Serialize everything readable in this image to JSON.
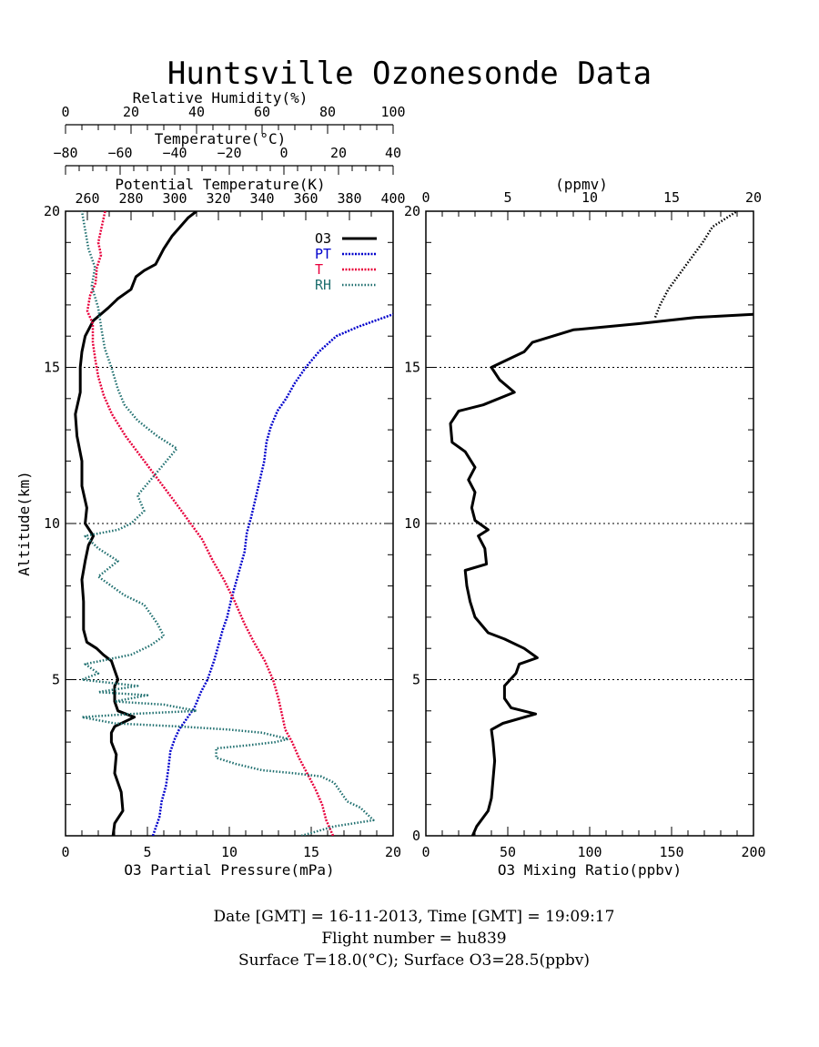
{
  "title": "Huntsville Ozonesonde Data",
  "footer": {
    "line1": "Date [GMT] = 16-11-2013,  Time [GMT] = 19:09:17",
    "line2": "Flight number = hu839",
    "line3": "Surface T=18.0(°C); Surface O3=28.5(ppbv)"
  },
  "colors": {
    "O3": "#000000",
    "PT": "#0000cc",
    "T": "#e8003c",
    "RH": "#1f6f6f"
  },
  "chart_data": [
    {
      "type": "line",
      "panel": "left",
      "ylabel": "Altitude(km)",
      "ylim": [
        0,
        20
      ],
      "yticks": [
        5,
        10,
        15,
        20
      ],
      "axes": [
        {
          "key": "O3",
          "label": "O3 Partial Pressure(mPa)",
          "position": "bottom",
          "range": [
            0,
            20
          ],
          "ticks": [
            0,
            5,
            10,
            15,
            20
          ]
        },
        {
          "key": "RH",
          "label": "Relative Humidity(%)",
          "position": "top-1",
          "range": [
            0,
            100
          ],
          "ticks": [
            0,
            20,
            40,
            60,
            80,
            100
          ]
        },
        {
          "key": "T",
          "label": "Temperature(°C)",
          "position": "top-2",
          "range": [
            -80,
            40
          ],
          "ticks": [
            -80,
            -60,
            -40,
            -20,
            0,
            20,
            40
          ]
        },
        {
          "key": "PT",
          "label": "Potential Temperature(K)",
          "position": "top-3",
          "range": [
            250,
            400
          ],
          "ticks": [
            260,
            280,
            300,
            320,
            340,
            360,
            380,
            400
          ]
        }
      ],
      "legend": [
        "O3",
        "PT",
        "T",
        "RH"
      ],
      "legend_placement": "top-right",
      "series": [
        {
          "name": "O3",
          "style": "solid",
          "points": [
            [
              2.9,
              0
            ],
            [
              3.0,
              0.4
            ],
            [
              3.5,
              0.8
            ],
            [
              3.4,
              1.4
            ],
            [
              3.0,
              2.0
            ],
            [
              3.1,
              2.6
            ],
            [
              2.8,
              3.0
            ],
            [
              2.8,
              3.3
            ],
            [
              3.0,
              3.5
            ],
            [
              4.2,
              3.8
            ],
            [
              3.2,
              4.0
            ],
            [
              3.0,
              4.3
            ],
            [
              3.0,
              4.8
            ],
            [
              3.2,
              5.0
            ],
            [
              3.0,
              5.3
            ],
            [
              2.8,
              5.6
            ],
            [
              2.3,
              5.8
            ],
            [
              1.9,
              6.0
            ],
            [
              1.3,
              6.2
            ],
            [
              1.1,
              6.6
            ],
            [
              1.1,
              7.5
            ],
            [
              1.0,
              8.2
            ],
            [
              1.2,
              8.8
            ],
            [
              1.4,
              9.3
            ],
            [
              1.7,
              9.6
            ],
            [
              1.2,
              10.0
            ],
            [
              1.3,
              10.5
            ],
            [
              1.0,
              11.2
            ],
            [
              1.0,
              12.0
            ],
            [
              0.7,
              12.8
            ],
            [
              0.6,
              13.5
            ],
            [
              0.9,
              14.2
            ],
            [
              0.9,
              15.0
            ],
            [
              1.0,
              15.5
            ],
            [
              1.2,
              16.0
            ],
            [
              1.7,
              16.5
            ],
            [
              2.6,
              16.9
            ],
            [
              3.2,
              17.2
            ],
            [
              4.0,
              17.5
            ],
            [
              4.3,
              17.9
            ],
            [
              4.8,
              18.1
            ],
            [
              5.5,
              18.3
            ],
            [
              6.0,
              18.8
            ],
            [
              6.5,
              19.2
            ],
            [
              7.0,
              19.5
            ],
            [
              7.5,
              19.8
            ],
            [
              8.0,
              20.0
            ]
          ]
        },
        {
          "name": "PT",
          "style": "dash-dot",
          "points": [
            [
              290,
              0
            ],
            [
              293,
              0.6
            ],
            [
              294,
              1.1
            ],
            [
              296,
              1.6
            ],
            [
              297,
              2.1
            ],
            [
              298,
              2.7
            ],
            [
              300,
              3.1
            ],
            [
              302,
              3.4
            ],
            [
              305,
              3.7
            ],
            [
              309,
              4.1
            ],
            [
              312,
              4.6
            ],
            [
              315,
              5.0
            ],
            [
              318,
              5.6
            ],
            [
              320,
              6.1
            ],
            [
              322,
              6.6
            ],
            [
              324,
              7.0
            ],
            [
              326,
              7.6
            ],
            [
              328,
              8.1
            ],
            [
              330,
              8.6
            ],
            [
              332,
              9.1
            ],
            [
              333,
              9.7
            ],
            [
              335,
              10.2
            ],
            [
              337,
              10.8
            ],
            [
              339,
              11.4
            ],
            [
              341,
              12.0
            ],
            [
              342,
              12.6
            ],
            [
              344,
              13.1
            ],
            [
              347,
              13.6
            ],
            [
              351,
              14.0
            ],
            [
              355,
              14.5
            ],
            [
              360,
              15.0
            ],
            [
              366,
              15.5
            ],
            [
              374,
              16.0
            ],
            [
              384,
              16.3
            ],
            [
              400,
              16.7
            ]
          ]
        },
        {
          "name": "T",
          "style": "dash-dot",
          "points": [
            [
              18.0,
              0
            ],
            [
              15.5,
              0.5
            ],
            [
              14.0,
              1.0
            ],
            [
              11.5,
              1.5
            ],
            [
              8.5,
              2.0
            ],
            [
              5.5,
              2.5
            ],
            [
              3.0,
              3.0
            ],
            [
              0.5,
              3.4
            ],
            [
              -0.5,
              3.8
            ],
            [
              -2.0,
              4.4
            ],
            [
              -4.0,
              5.0
            ],
            [
              -7.0,
              5.6
            ],
            [
              -11.0,
              6.2
            ],
            [
              -14.5,
              6.8
            ],
            [
              -18.0,
              7.5
            ],
            [
              -22.0,
              8.2
            ],
            [
              -26.0,
              8.8
            ],
            [
              -30.0,
              9.5
            ],
            [
              -35.0,
              10.1
            ],
            [
              -40.0,
              10.7
            ],
            [
              -46.0,
              11.4
            ],
            [
              -52.0,
              12.1
            ],
            [
              -58.0,
              12.8
            ],
            [
              -63.0,
              13.5
            ],
            [
              -66.0,
              14.1
            ],
            [
              -68.0,
              14.7
            ],
            [
              -69.0,
              15.2
            ],
            [
              -70.0,
              15.8
            ],
            [
              -70.0,
              16.4
            ],
            [
              -72.0,
              16.8
            ],
            [
              -71.0,
              17.3
            ],
            [
              -69.0,
              17.7
            ],
            [
              -68.5,
              18.2
            ],
            [
              -67.0,
              18.6
            ],
            [
              -68.0,
              19.0
            ],
            [
              -67.0,
              19.4
            ],
            [
              -66.0,
              19.8
            ],
            [
              -65.5,
              20.0
            ]
          ]
        },
        {
          "name": "RH",
          "style": "dotted",
          "points": [
            [
              72,
              0
            ],
            [
              82,
              0.3
            ],
            [
              94,
              0.5
            ],
            [
              90,
              0.9
            ],
            [
              86,
              1.1
            ],
            [
              84,
              1.4
            ],
            [
              82,
              1.7
            ],
            [
              78,
              1.9
            ],
            [
              70,
              2.0
            ],
            [
              60,
              2.1
            ],
            [
              52,
              2.3
            ],
            [
              46,
              2.5
            ],
            [
              46,
              2.8
            ],
            [
              56,
              2.9
            ],
            [
              64,
              3.0
            ],
            [
              68,
              3.1
            ],
            [
              60,
              3.3
            ],
            [
              50,
              3.4
            ],
            [
              35,
              3.5
            ],
            [
              15,
              3.6
            ],
            [
              5,
              3.8
            ],
            [
              20,
              3.9
            ],
            [
              40,
              4.0
            ],
            [
              30,
              4.2
            ],
            [
              15,
              4.3
            ],
            [
              25,
              4.5
            ],
            [
              10,
              4.6
            ],
            [
              22,
              4.8
            ],
            [
              5,
              5.0
            ],
            [
              10,
              5.2
            ],
            [
              6,
              5.5
            ],
            [
              20,
              5.8
            ],
            [
              26,
              6.1
            ],
            [
              30,
              6.4
            ],
            [
              28,
              6.8
            ],
            [
              24,
              7.4
            ],
            [
              18,
              7.7
            ],
            [
              14,
              8.0
            ],
            [
              10,
              8.3
            ],
            [
              16,
              8.8
            ],
            [
              10,
              9.2
            ],
            [
              6,
              9.6
            ],
            [
              16,
              9.8
            ],
            [
              20,
              10.0
            ],
            [
              24,
              10.4
            ],
            [
              22,
              10.9
            ],
            [
              26,
              11.4
            ],
            [
              30,
              11.9
            ],
            [
              34,
              12.4
            ],
            [
              28,
              12.8
            ],
            [
              22,
              13.3
            ],
            [
              18,
              13.8
            ],
            [
              16,
              14.3
            ],
            [
              14,
              15.0
            ],
            [
              12,
              15.6
            ],
            [
              11,
              16.2
            ],
            [
              10,
              16.9
            ],
            [
              8,
              17.6
            ],
            [
              9,
              18.2
            ],
            [
              7,
              18.8
            ],
            [
              6,
              19.4
            ],
            [
              5,
              20.0
            ]
          ]
        }
      ]
    },
    {
      "type": "line",
      "panel": "right",
      "xlabel": "O3 Mixing Ratio(ppbv)",
      "xlim": [
        0,
        200
      ],
      "xticks": [
        0,
        50,
        100,
        150,
        200
      ],
      "top_axis": {
        "label": "(ppmv)",
        "range": [
          0,
          20
        ],
        "ticks": [
          0,
          5,
          10,
          15,
          20
        ]
      },
      "ylim": [
        0,
        20
      ],
      "yticks": [
        0,
        5,
        10,
        15,
        20
      ],
      "series": [
        {
          "name": "O3 ppbv",
          "style": "solid",
          "points": [
            [
              28.5,
              0
            ],
            [
              31,
              0.3
            ],
            [
              38,
              0.8
            ],
            [
              40,
              1.2
            ],
            [
              41,
              1.8
            ],
            [
              42,
              2.4
            ],
            [
              41,
              3.0
            ],
            [
              40,
              3.4
            ],
            [
              47,
              3.6
            ],
            [
              67,
              3.9
            ],
            [
              52,
              4.1
            ],
            [
              48,
              4.4
            ],
            [
              48,
              4.8
            ],
            [
              55,
              5.2
            ],
            [
              57,
              5.5
            ],
            [
              68,
              5.7
            ],
            [
              60,
              6.0
            ],
            [
              48,
              6.3
            ],
            [
              38,
              6.5
            ],
            [
              30,
              7.0
            ],
            [
              27,
              7.5
            ],
            [
              25,
              8.0
            ],
            [
              24,
              8.5
            ],
            [
              37,
              8.7
            ],
            [
              36,
              9.2
            ],
            [
              32,
              9.6
            ],
            [
              38,
              9.8
            ],
            [
              30,
              10.1
            ],
            [
              28,
              10.5
            ],
            [
              30,
              11.0
            ],
            [
              26,
              11.4
            ],
            [
              30,
              11.8
            ],
            [
              24,
              12.3
            ],
            [
              16,
              12.6
            ],
            [
              15,
              13.2
            ],
            [
              20,
              13.6
            ],
            [
              35,
              13.8
            ],
            [
              54,
              14.2
            ],
            [
              45,
              14.6
            ],
            [
              40,
              15.0
            ],
            [
              48,
              15.2
            ],
            [
              60,
              15.5
            ],
            [
              65,
              15.8
            ],
            [
              90,
              16.2
            ],
            [
              130,
              16.4
            ],
            [
              165,
              16.6
            ],
            [
              200,
              16.7
            ]
          ]
        },
        {
          "name": "Potential temperature",
          "style": "dotted",
          "ppmv_axis": true,
          "points": [
            [
              14,
              16.6
            ],
            [
              14.3,
              17.0
            ],
            [
              14.8,
              17.5
            ],
            [
              15.5,
              18.0
            ],
            [
              16.2,
              18.5
            ],
            [
              16.9,
              19.0
            ],
            [
              17.5,
              19.5
            ],
            [
              19,
              20.0
            ]
          ]
        }
      ]
    }
  ]
}
